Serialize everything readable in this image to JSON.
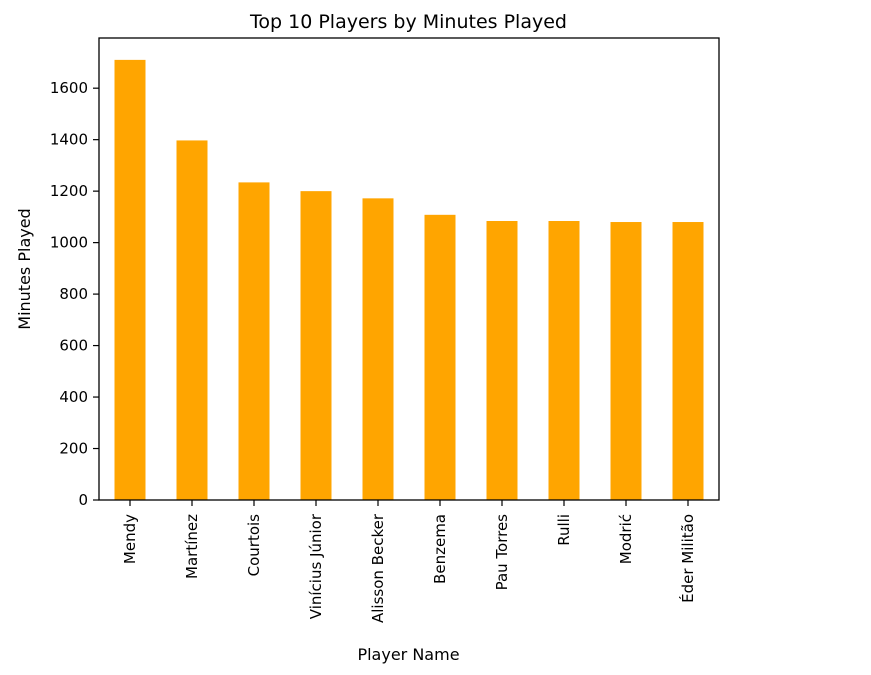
{
  "chart_data": {
    "type": "bar",
    "title": "Top 10 Players by Minutes Played",
    "xlabel": "Player Name",
    "ylabel": "Minutes Played",
    "categories": [
      "Mendy",
      "Martínez",
      "Courtois",
      "Vinícius Júnior",
      "Alisson Becker",
      "Benzema",
      "Pau Torres",
      "Rulli",
      "Modrić",
      "Éder Militão"
    ],
    "values": [
      1710,
      1397,
      1234,
      1200,
      1172,
      1108,
      1084,
      1084,
      1080,
      1080
    ],
    "yticks": [
      0,
      200,
      400,
      600,
      800,
      1000,
      1200,
      1400,
      1600
    ],
    "ylim": [
      0,
      1795
    ],
    "bar_color": "#FFA500",
    "grid": false,
    "legend": false
  }
}
